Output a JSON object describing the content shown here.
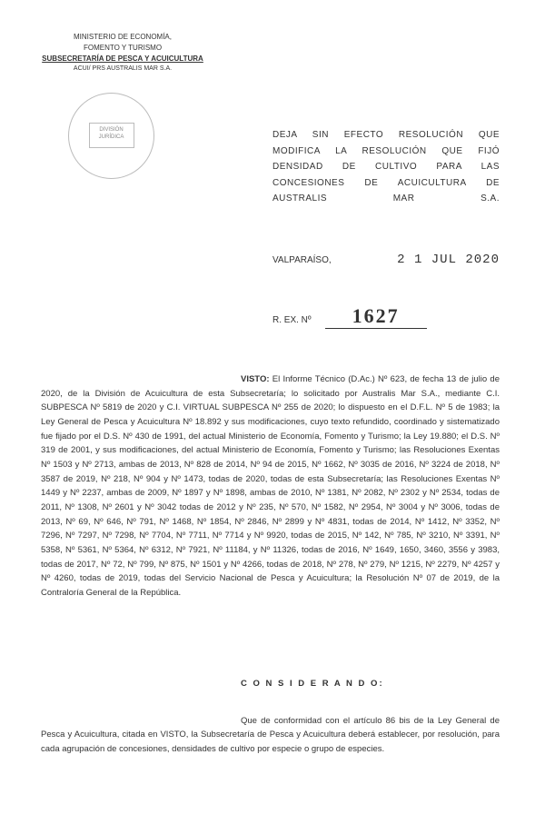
{
  "letterhead": {
    "line1": "MINISTERIO DE ECONOMÍA,",
    "line2": "FOMENTO Y TURISMO",
    "line3": "SUBSECRETARÍA DE PESCA Y ACUICULTURA",
    "line4": "ACUI/ PRS AUSTRALIS MAR S.A."
  },
  "seal": {
    "text_line1": "DIVISIÓN",
    "text_line2": "JURÍDICA"
  },
  "title": "DEJA SIN EFECTO RESOLUCIÓN QUE MODIFICA LA RESOLUCIÓN QUE FIJÓ DENSIDAD DE CULTIVO PARA LAS CONCESIONES DE ACUICULTURA DE AUSTRALIS MAR S.A.",
  "location": "VALPARAÍSO,",
  "date_stamp": "2 1 JUL 2020",
  "resolution": {
    "label": "R. EX. Nº",
    "number": "1627"
  },
  "visto": {
    "label": "VISTO:",
    "body": " El Informe Técnico (D.Ac.) Nº 623, de fecha 13 de julio de 2020, de la División de Acuicultura de esta Subsecretaría; lo solicitado por Australis Mar S.A., mediante C.I. SUBPESCA Nº 5819 de 2020 y C.I. VIRTUAL SUBPESCA Nº 255 de 2020; lo dispuesto en el D.F.L. Nº 5 de 1983; la Ley General de Pesca y Acuicultura Nº 18.892 y sus modificaciones, cuyo texto refundido, coordinado y sistematizado fue fijado por el D.S. Nº 430 de 1991, del actual Ministerio de Economía, Fomento y Turismo; la Ley 19.880; el D.S. Nº 319 de 2001, y sus modificaciones, del actual Ministerio de Economía, Fomento y Turismo; las Resoluciones Exentas Nº 1503 y Nº 2713, ambas de 2013, Nº 828 de 2014, Nº 94 de 2015, Nº 1662, Nº 3035 de 2016, Nº 3224 de 2018, Nº 3587 de 2019, Nº 218, Nº 904 y Nº 1473, todas de 2020, todas de esta Subsecretaría; las Resoluciones Exentas Nº 1449 y Nº 2237, ambas de 2009, Nº 1897 y Nº 1898, ambas de 2010, Nº 1381, Nº 2082, Nº 2302 y Nº 2534, todas de 2011, Nº 1308, Nº 2601 y Nº 3042 todas de 2012 y Nº 235, Nº 570, Nº 1582, Nº 2954, Nº 3004 y Nº 3006, todas de 2013, Nº 69, Nº 646, Nº 791, Nº 1468, Nº 1854, Nº 2846, Nº 2899 y Nº 4831, todas de 2014, Nº 1412, Nº 3352, Nº 7296, Nº 7297, Nº 7298, Nº 7704, Nº 7711, Nº 7714 y Nº 9920, todas de 2015, Nº 142, Nº 785, Nº 3210, Nº 3391, Nº 5358, Nº 5361, Nº 5364, Nº 6312, Nº 7921, Nº 11184, y Nº 11326, todas de 2016, Nº 1649, 1650, 3460, 3556 y 3983, todas de 2017, Nº 72, Nº 799, Nº 875, Nº 1501 y Nº 4266, todas de 2018, Nº 278, Nº 279, Nº 1215, Nº 2279, Nº 4257 y Nº 4260, todas de 2019, todas del Servicio Nacional de Pesca y Acuicultura; la Resolución Nº 07 de 2019, de la Contraloría General de la República."
  },
  "considerando": {
    "label": "C O N S I D E R A N D O:",
    "body": "Que de conformidad con el artículo 86 bis de la Ley General de Pesca y Acuicultura, citada en VISTO, la Subsecretaría de Pesca y Acuicultura deberá establecer, por resolución, para cada agrupación de concesiones, densidades de cultivo por especie o grupo de especies."
  },
  "colors": {
    "background": "#ffffff",
    "text": "#333333",
    "seal_border": "#bbbbbb",
    "seal_text": "#888888"
  }
}
